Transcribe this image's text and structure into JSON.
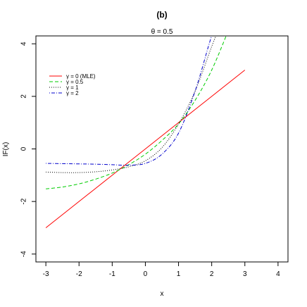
{
  "chart_data": {
    "type": "line",
    "title": "(b)",
    "subtitle": "θ = 0.5",
    "xlabel": "x",
    "ylabel": "IF(x)",
    "xlim": [
      -3.3,
      4.3
    ],
    "ylim": [
      -4.3,
      4.3
    ],
    "xticks": [
      -3,
      -2,
      -1,
      0,
      1,
      2,
      3,
      4
    ],
    "yticks": [
      -4,
      -2,
      0,
      2,
      4
    ],
    "grid": false,
    "legend_position": "top-left",
    "series": [
      {
        "name": "γ = 0 (MLE)",
        "color": "#ff0000",
        "dash": "solid",
        "x": [
          -3,
          -2,
          -1,
          0,
          1,
          2,
          3
        ],
        "y": [
          -3.0,
          -2.0,
          -1.0,
          0.0,
          1.0,
          2.0,
          3.0
        ]
      },
      {
        "name": "γ = 0.5",
        "color": "#00cc00",
        "dash": "dashed",
        "x": [
          -3,
          -2.5,
          -2,
          -1.5,
          -1,
          -0.5,
          0,
          0.5,
          1,
          1.5,
          2,
          2.5
        ],
        "y": [
          -1.52,
          -1.45,
          -1.33,
          -1.15,
          -0.92,
          -0.6,
          -0.2,
          0.32,
          0.95,
          1.85,
          3.0,
          4.5
        ]
      },
      {
        "name": "γ = 1",
        "color": "#000000",
        "dash": "dotted",
        "x": [
          -3,
          -2.5,
          -2,
          -1.5,
          -1,
          -0.5,
          0,
          0.5,
          1,
          1.5,
          2,
          2.2
        ],
        "y": [
          -0.88,
          -0.9,
          -0.9,
          -0.87,
          -0.8,
          -0.68,
          -0.45,
          0.05,
          0.95,
          2.2,
          3.9,
          4.5
        ]
      },
      {
        "name": "γ = 2",
        "color": "#0000cc",
        "dash": "dotdash",
        "x": [
          -3,
          -2.5,
          -2,
          -1.5,
          -1,
          -0.5,
          0,
          0.5,
          1,
          1.5,
          1.9,
          2.05
        ],
        "y": [
          -0.55,
          -0.56,
          -0.57,
          -0.58,
          -0.6,
          -0.62,
          -0.55,
          -0.2,
          0.6,
          2.2,
          3.9,
          4.5
        ]
      }
    ]
  }
}
